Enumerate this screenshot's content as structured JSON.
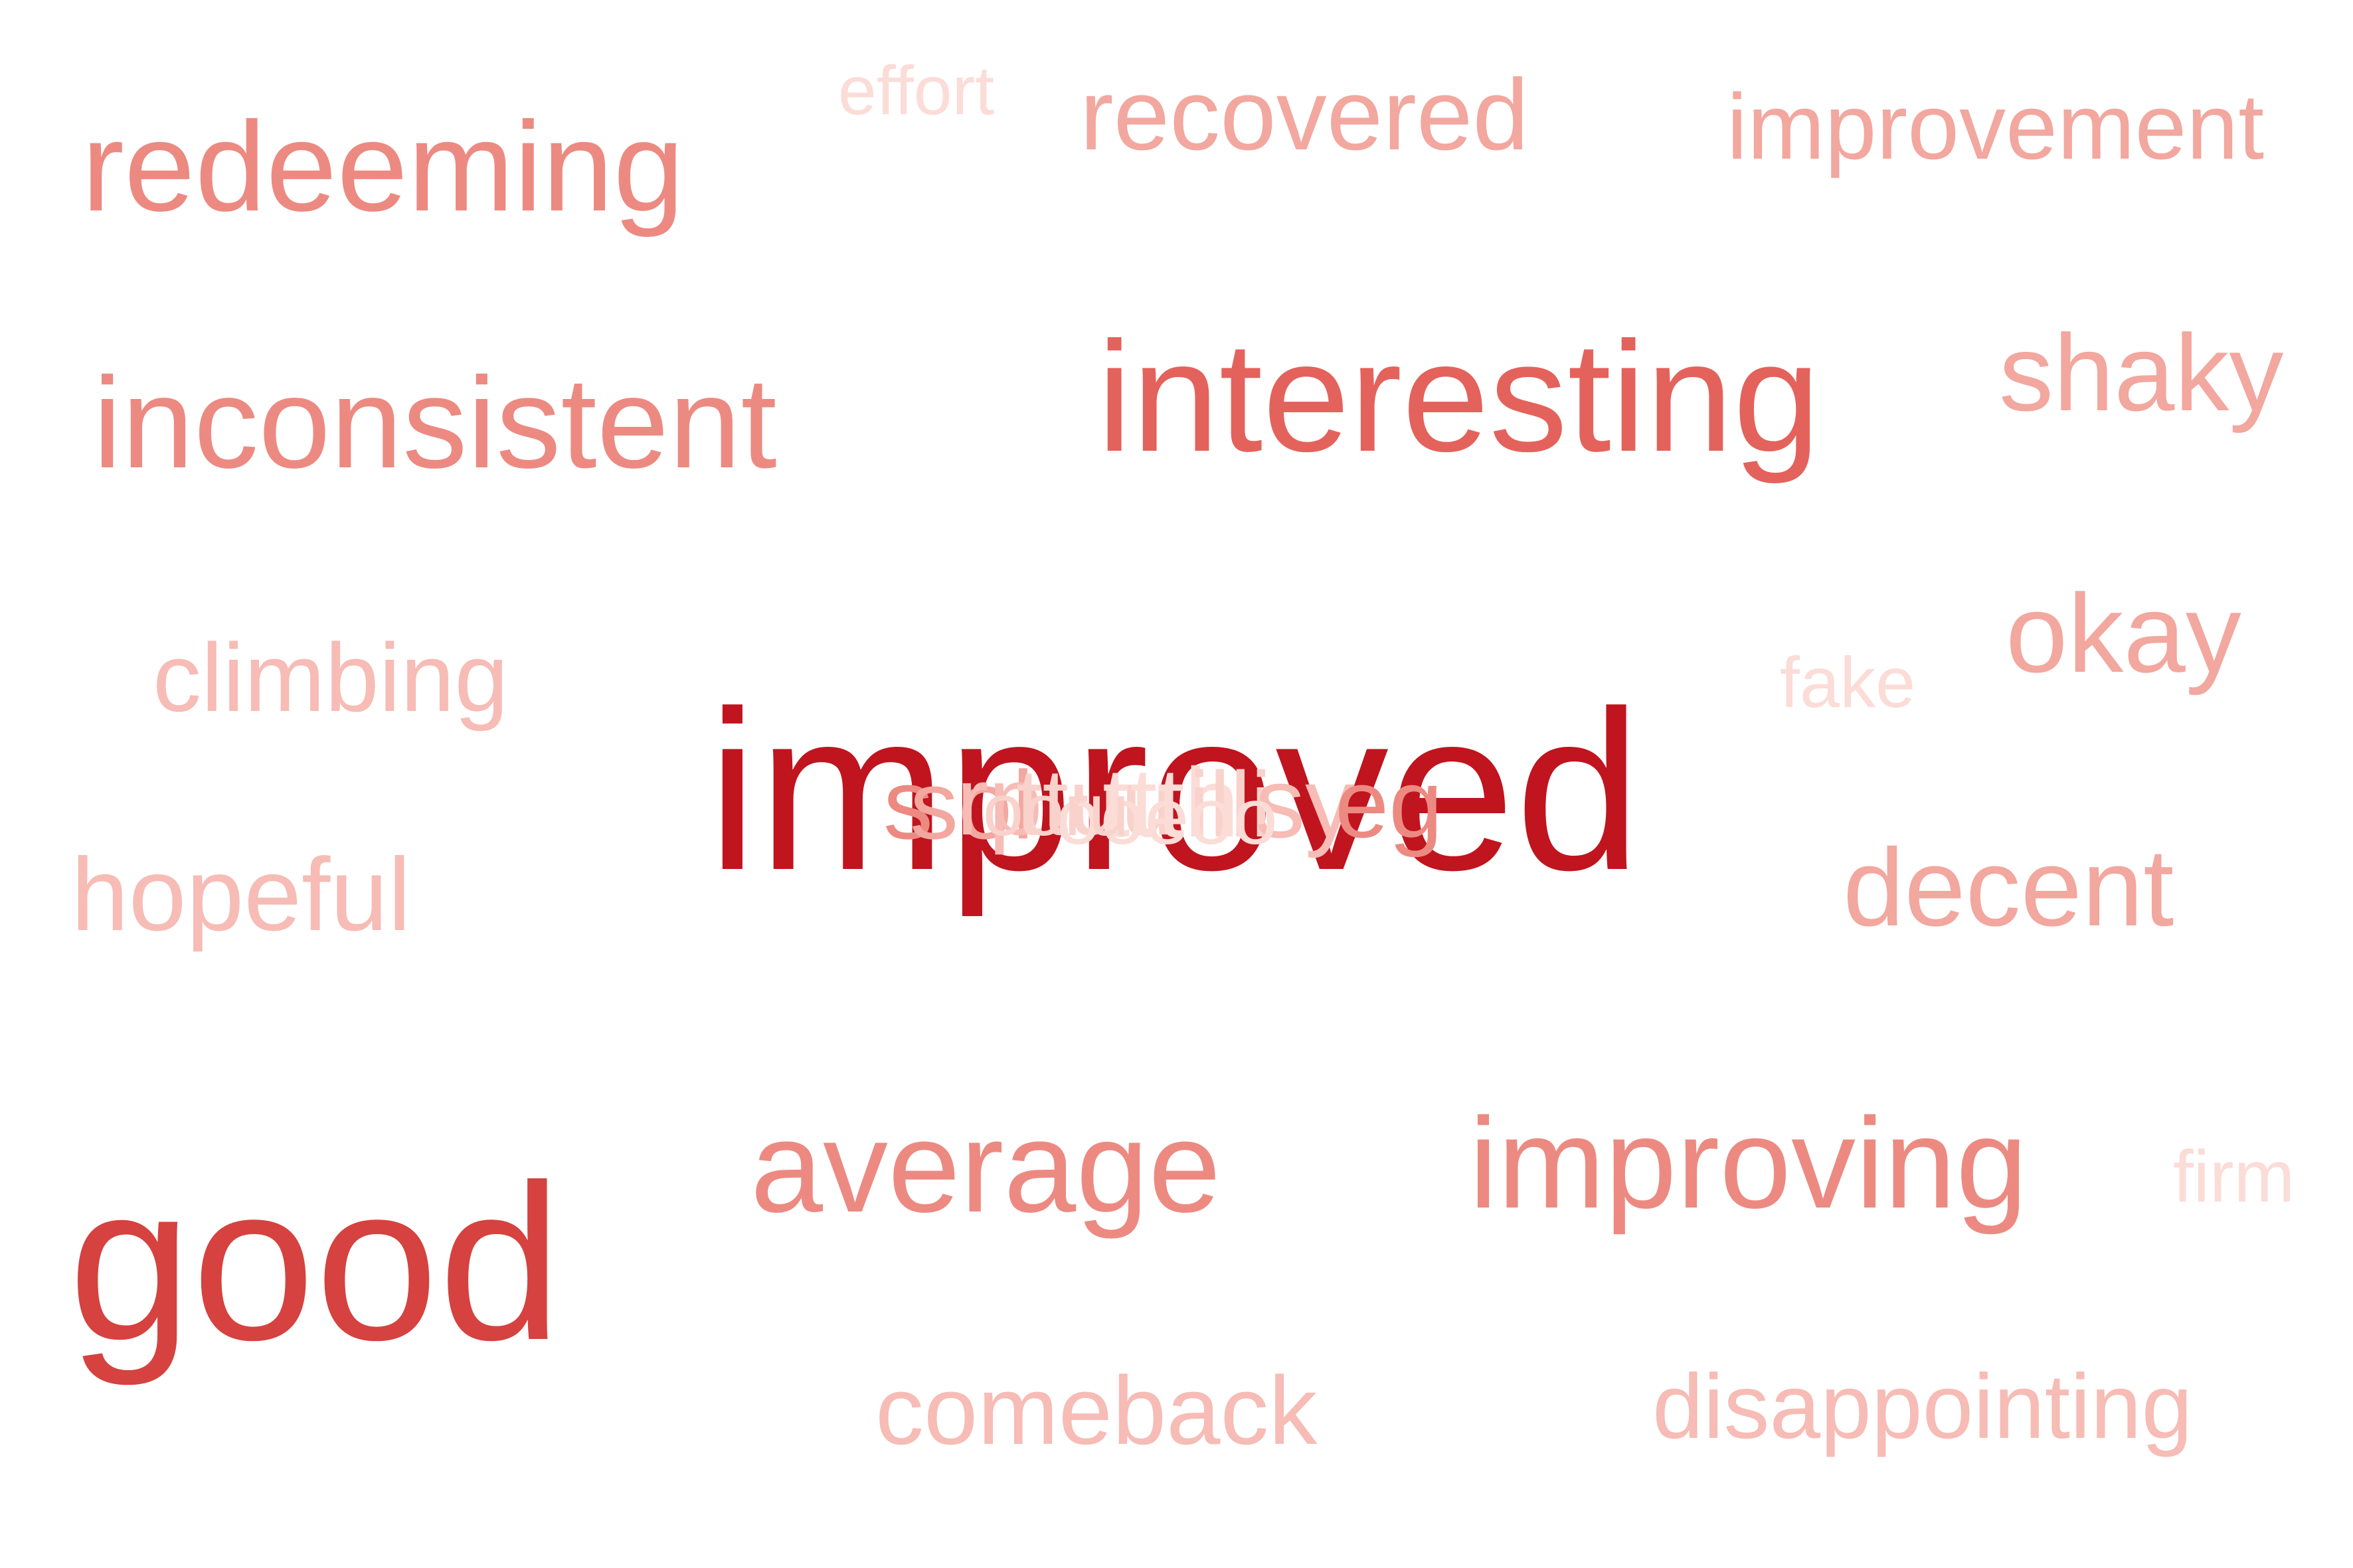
{
  "words": [
    {
      "id": "improved",
      "text": "improved",
      "color": "#c0141e"
    },
    {
      "id": "good",
      "text": "good",
      "color": "#d5423f"
    },
    {
      "id": "interesting",
      "text": "interesting",
      "color": "#e4625c"
    },
    {
      "id": "redeeming",
      "text": "redeeming",
      "color": "#ec8a82"
    },
    {
      "id": "inconsistent",
      "text": "inconsistent",
      "color": "#ec8a82"
    },
    {
      "id": "average",
      "text": "average",
      "color": "#ec8a82"
    },
    {
      "id": "improving",
      "text": "improving",
      "color": "#ec8a82"
    },
    {
      "id": "recovered",
      "text": "recovered",
      "color": "#f2a79f"
    },
    {
      "id": "improvement",
      "text": "improvement",
      "color": "#f2a79f"
    },
    {
      "id": "shaky",
      "text": "shaky",
      "color": "#f2a79f"
    },
    {
      "id": "okay",
      "text": "okay",
      "color": "#f2a79f"
    },
    {
      "id": "decent",
      "text": "decent",
      "color": "#f2a79f"
    },
    {
      "id": "hopeful",
      "text": "hopeful",
      "color": "#f6bcb5"
    },
    {
      "id": "climbing",
      "text": "climbing",
      "color": "#f6bcb5"
    },
    {
      "id": "comeback",
      "text": "comeback",
      "color": "#f6bcb5"
    },
    {
      "id": "disappointing",
      "text": "disappointing",
      "color": "#f6bcb5"
    },
    {
      "id": "effort",
      "text": "effort",
      "color": "#fbdcd7"
    },
    {
      "id": "fake",
      "text": "fake",
      "color": "#fbdcd7"
    },
    {
      "id": "firm",
      "text": "firm",
      "color": "#fbdcd7"
    }
  ]
}
